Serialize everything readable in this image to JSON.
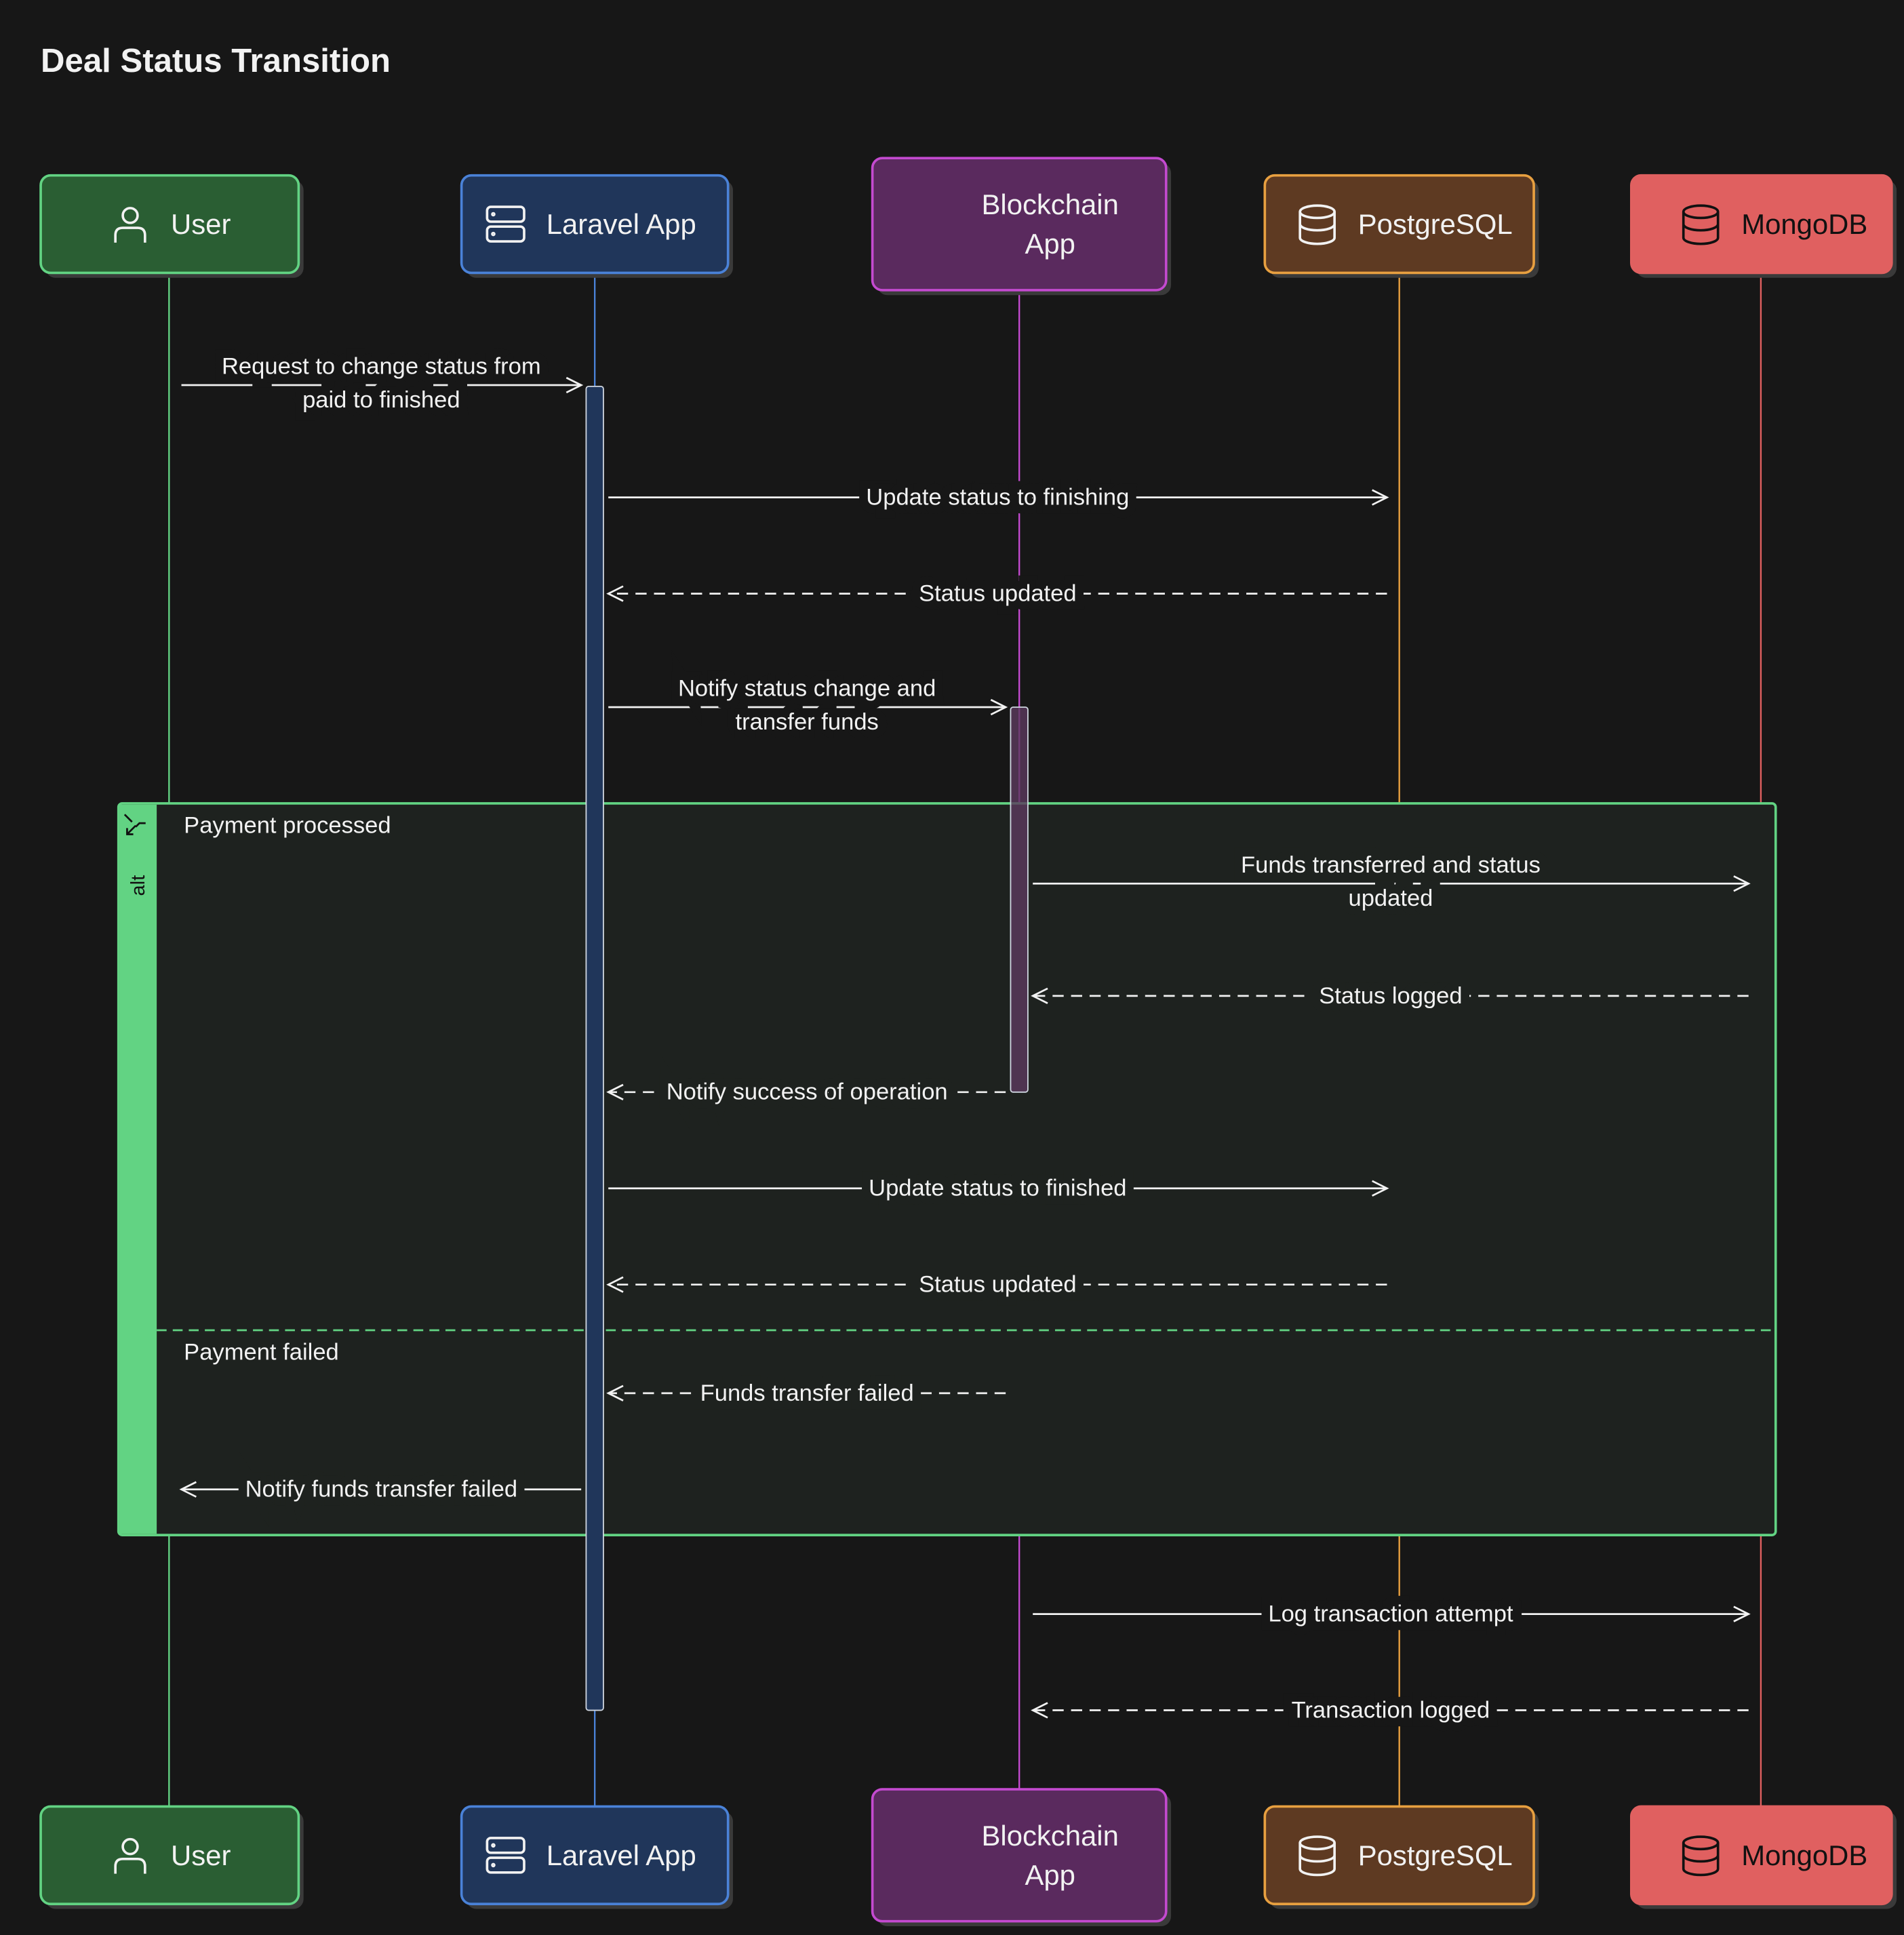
{
  "title": "Deal Status Transition",
  "participants": [
    {
      "name": "User",
      "lines": [
        "User"
      ],
      "icon": "user-icon",
      "fill": "#2a5e33",
      "stroke": "#62d383",
      "text": "#f2f2f2"
    },
    {
      "name": "Laravel App",
      "lines": [
        "Laravel App"
      ],
      "icon": "server-icon",
      "fill": "#20365a",
      "stroke": "#4a82d8",
      "text": "#f2f2f2"
    },
    {
      "name": "Blockchain App",
      "lines": [
        "Blockchain",
        "App"
      ],
      "icon": "",
      "fill": "#5a2a5e",
      "stroke": "#c44ad0",
      "text": "#f2f2f2"
    },
    {
      "name": "PostgreSQL",
      "lines": [
        "PostgreSQL"
      ],
      "icon": "database-icon",
      "fill": "#5e3a22",
      "stroke": "#e8a040",
      "text": "#f2f2f2"
    },
    {
      "name": "MongoDB",
      "lines": [
        "MongoDB"
      ],
      "icon": "database-icon",
      "fill": "#e06060",
      "stroke": "#e06060",
      "text": "#111111"
    }
  ],
  "messages": [
    {
      "from": 0,
      "to": 1,
      "dashed": false,
      "lines": [
        "Request to change status from",
        "paid to finished"
      ]
    },
    {
      "from": 1,
      "to": 3,
      "dashed": false,
      "lines": [
        "Update status to finishing"
      ]
    },
    {
      "from": 3,
      "to": 1,
      "dashed": true,
      "lines": [
        "Status updated"
      ]
    },
    {
      "from": 1,
      "to": 2,
      "dashed": false,
      "lines": [
        "Notify status change and",
        "transfer funds"
      ]
    },
    {
      "from": 2,
      "to": 4,
      "dashed": false,
      "lines": [
        "Funds transferred and status",
        "updated"
      ]
    },
    {
      "from": 4,
      "to": 2,
      "dashed": true,
      "lines": [
        "Status logged"
      ]
    },
    {
      "from": 2,
      "to": 1,
      "dashed": true,
      "lines": [
        "Notify success of operation"
      ]
    },
    {
      "from": 1,
      "to": 3,
      "dashed": false,
      "lines": [
        "Update status to finished"
      ]
    },
    {
      "from": 3,
      "to": 1,
      "dashed": true,
      "lines": [
        "Status updated"
      ]
    },
    {
      "from": 2,
      "to": 1,
      "dashed": true,
      "lines": [
        "Funds transfer failed"
      ]
    },
    {
      "from": 1,
      "to": 0,
      "dashed": false,
      "lines": [
        "Notify funds transfer failed"
      ]
    },
    {
      "from": 2,
      "to": 4,
      "dashed": false,
      "lines": [
        "Log transaction attempt"
      ]
    },
    {
      "from": 4,
      "to": 2,
      "dashed": true,
      "lines": [
        "Transaction logged"
      ]
    }
  ],
  "alt": {
    "keyword": "alt",
    "color": "#62d383",
    "sections": [
      "Payment processed",
      "Payment failed"
    ]
  }
}
